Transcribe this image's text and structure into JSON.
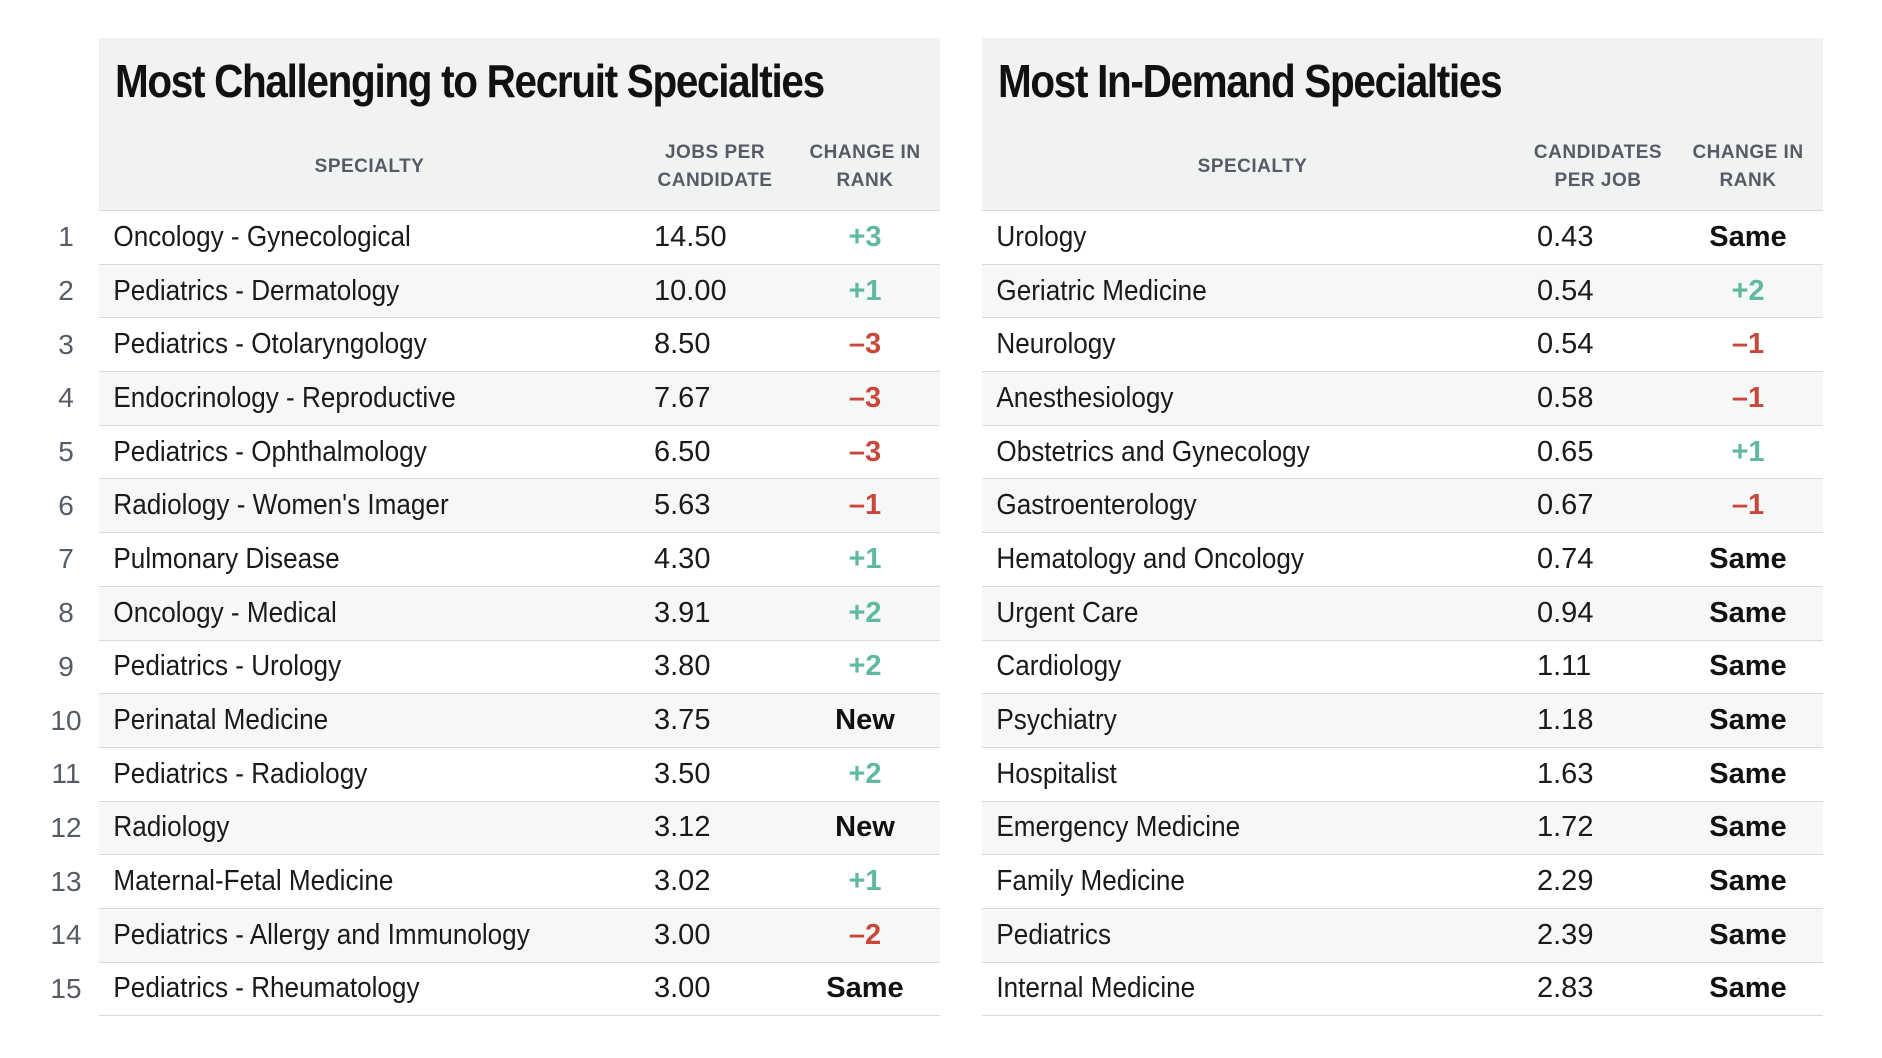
{
  "left_table": {
    "title": "Most Challenging to Recruit Specialties",
    "columns": {
      "specialty": "SPECIALTY",
      "value": "JOBS PER CANDIDATE",
      "change": "CHANGE IN RANK"
    },
    "rows": [
      {
        "rank": "1",
        "specialty": "Oncology - Gynecological",
        "value": "14.50",
        "change": "+3",
        "trend": "up"
      },
      {
        "rank": "2",
        "specialty": "Pediatrics - Dermatology",
        "value": "10.00",
        "change": "+1",
        "trend": "up"
      },
      {
        "rank": "3",
        "specialty": "Pediatrics - Otolaryngology",
        "value": "8.50",
        "change": "–3",
        "trend": "down"
      },
      {
        "rank": "4",
        "specialty": "Endocrinology - Reproductive",
        "value": "7.67",
        "change": "–3",
        "trend": "down"
      },
      {
        "rank": "5",
        "specialty": "Pediatrics - Ophthalmology",
        "value": "6.50",
        "change": "–3",
        "trend": "down"
      },
      {
        "rank": "6",
        "specialty": "Radiology - Women's Imager",
        "value": "5.63",
        "change": "–1",
        "trend": "down"
      },
      {
        "rank": "7",
        "specialty": "Pulmonary Disease",
        "value": "4.30",
        "change": "+1",
        "trend": "up"
      },
      {
        "rank": "8",
        "specialty": "Oncology - Medical",
        "value": "3.91",
        "change": "+2",
        "trend": "up"
      },
      {
        "rank": "9",
        "specialty": "Pediatrics - Urology",
        "value": "3.80",
        "change": "+2",
        "trend": "up"
      },
      {
        "rank": "10",
        "specialty": "Perinatal Medicine",
        "value": "3.75",
        "change": "New",
        "trend": "same"
      },
      {
        "rank": "11",
        "specialty": "Pediatrics - Radiology",
        "value": "3.50",
        "change": "+2",
        "trend": "up"
      },
      {
        "rank": "12",
        "specialty": "Radiology",
        "value": "3.12",
        "change": "New",
        "trend": "same"
      },
      {
        "rank": "13",
        "specialty": "Maternal-Fetal Medicine",
        "value": "3.02",
        "change": "+1",
        "trend": "up"
      },
      {
        "rank": "14",
        "specialty": "Pediatrics - Allergy and Immunology",
        "value": "3.00",
        "change": "–2",
        "trend": "down"
      },
      {
        "rank": "15",
        "specialty": "Pediatrics - Rheumatology",
        "value": "3.00",
        "change": "Same",
        "trend": "same"
      }
    ]
  },
  "right_table": {
    "title": "Most In-Demand Specialties",
    "columns": {
      "specialty": "SPECIALTY",
      "value": "CANDIDATES PER JOB",
      "change": "CHANGE IN RANK"
    },
    "rows": [
      {
        "specialty": "Urology",
        "value": "0.43",
        "change": "Same",
        "trend": "same"
      },
      {
        "specialty": "Geriatric Medicine",
        "value": "0.54",
        "change": "+2",
        "trend": "up"
      },
      {
        "specialty": "Neurology",
        "value": "0.54",
        "change": "–1",
        "trend": "down"
      },
      {
        "specialty": "Anesthesiology",
        "value": "0.58",
        "change": "–1",
        "trend": "down"
      },
      {
        "specialty": "Obstetrics and Gynecology",
        "value": "0.65",
        "change": "+1",
        "trend": "up"
      },
      {
        "specialty": "Gastroenterology",
        "value": "0.67",
        "change": "–1",
        "trend": "down"
      },
      {
        "specialty": "Hematology and Oncology",
        "value": "0.74",
        "change": "Same",
        "trend": "same"
      },
      {
        "specialty": "Urgent Care",
        "value": "0.94",
        "change": "Same",
        "trend": "same"
      },
      {
        "specialty": "Cardiology",
        "value": "1.11",
        "change": "Same",
        "trend": "same"
      },
      {
        "specialty": "Psychiatry",
        "value": "1.18",
        "change": "Same",
        "trend": "same"
      },
      {
        "specialty": "Hospitalist",
        "value": "1.63",
        "change": "Same",
        "trend": "same"
      },
      {
        "specialty": "Emergency Medicine",
        "value": "1.72",
        "change": "Same",
        "trend": "same"
      },
      {
        "specialty": "Family Medicine",
        "value": "2.29",
        "change": "Same",
        "trend": "same"
      },
      {
        "specialty": "Pediatrics",
        "value": "2.39",
        "change": "Same",
        "trend": "same"
      },
      {
        "specialty": "Internal Medicine",
        "value": "2.83",
        "change": "Same",
        "trend": "same"
      }
    ]
  },
  "colors": {
    "up": "#5fb8a0",
    "down": "#c8473a",
    "same": "#111111",
    "header_bg": "#f1f2f2"
  }
}
